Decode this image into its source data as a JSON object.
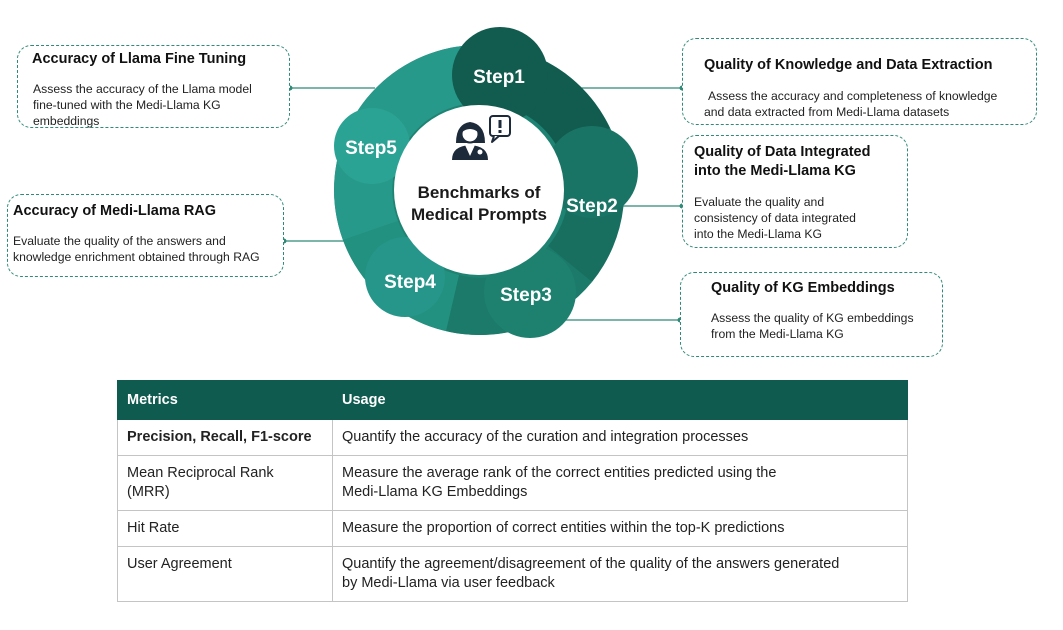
{
  "center": {
    "line1": "Benchmarks of",
    "line2": "Medical Prompts"
  },
  "steps": [
    "Step1",
    "Step2",
    "Step3",
    "Step4",
    "Step5"
  ],
  "callouts": {
    "fine_tuning": {
      "title": "Accuracy of Llama Fine Tuning",
      "desc": [
        "Assess the accuracy of the Llama model",
        "fine-tuned with the Medi-Llama KG",
        "embeddings"
      ]
    },
    "rag": {
      "title": "Accuracy of Medi-Llama RAG",
      "desc": [
        "Evaluate the quality of the answers and",
        "knowledge enrichment obtained through RAG"
      ]
    },
    "extraction": {
      "title": "Quality of Knowledge and Data Extraction",
      "desc": [
        "Assess the accuracy and completeness of knowledge",
        "and data extracted from Medi-Llama datasets"
      ]
    },
    "integration": {
      "title": [
        "Quality of Data Integrated",
        "into the Medi-Llama KG"
      ],
      "desc": [
        "Evaluate the quality and",
        "consistency of data integrated",
        "into the Medi-Llama KG"
      ]
    },
    "embeddings": {
      "title": "Quality of KG Embeddings",
      "desc": [
        "Assess the quality of KG embeddings",
        "from the Medi-Llama KG"
      ]
    }
  },
  "table": {
    "headers": [
      "Metrics",
      "Usage"
    ],
    "rows": [
      {
        "metric": [
          "Precision, Recall, F1-score"
        ],
        "usage": [
          "Quantify the accuracy of the curation and integration processes"
        ]
      },
      {
        "metric": [
          "Mean Reciprocal Rank",
          "(MRR)"
        ],
        "usage": [
          "Measure the average rank of the correct entities predicted using the",
          "Medi-Llama KG Embeddings"
        ]
      },
      {
        "metric": [
          "Hit Rate"
        ],
        "usage": [
          "Measure the proportion of correct entities within the top-K predictions"
        ]
      },
      {
        "metric": [
          "User Agreement"
        ],
        "usage": [
          "Quantify the agreement/disagreement of the quality of the answers generated",
          "by Medi-Llama via user feedback"
        ]
      }
    ]
  },
  "colors": {
    "ring_dark": "#125b4f",
    "ring_mid": "#1b7a69",
    "ring_light": "#2a9a88",
    "dashed_border": "#2f8a77",
    "header_bg": "#0f5b4f"
  },
  "icons": {
    "center": "doctor-question-icon"
  }
}
